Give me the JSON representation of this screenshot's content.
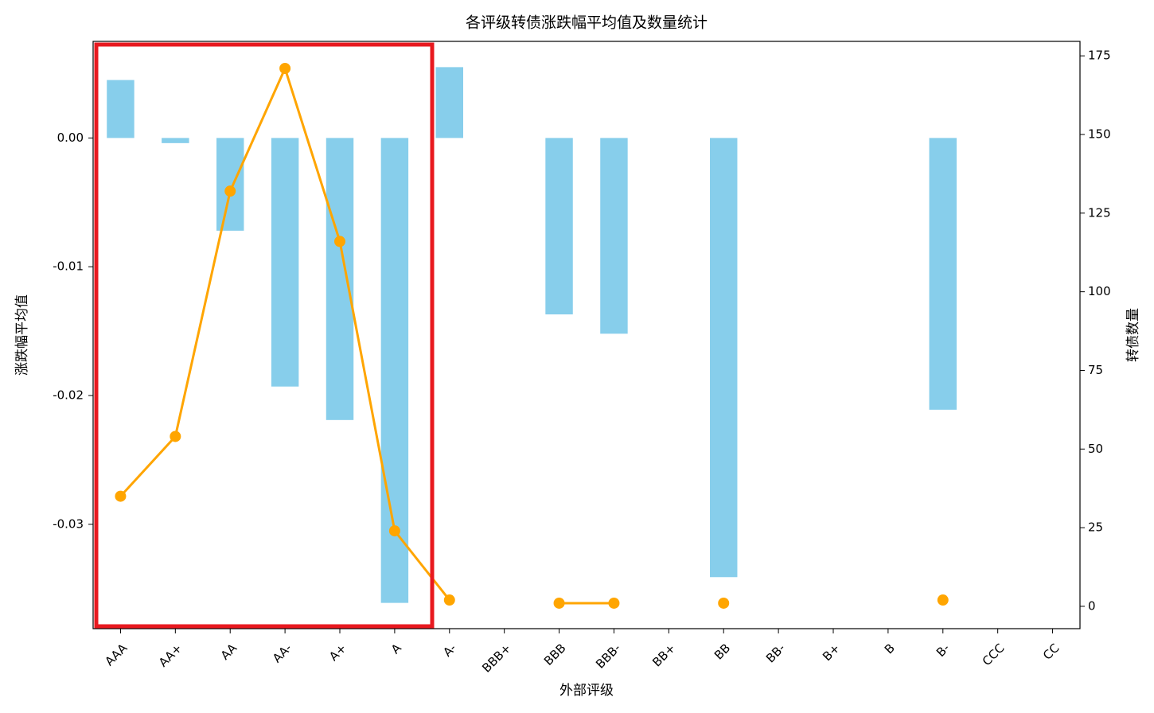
{
  "chart_data": {
    "type": "bar-line",
    "title": "各评级转债涨跌幅平均值及数量统计",
    "x_label": "外部评级",
    "y_label": "涨跌幅平均值",
    "y2_label": "转债数量",
    "categories": [
      "AAA",
      "AA+",
      "AA",
      "AA-",
      "A+",
      "A",
      "A-",
      "BBB+",
      "BBB",
      "BBB-",
      "BB+",
      "BB",
      "BB-",
      "B+",
      "B",
      "B-",
      "CCC",
      "CC"
    ],
    "series": [
      {
        "type": "bar",
        "color": "#87ceeb",
        "values": [
          0.0045,
          -0.0004,
          -0.0072,
          -0.0193,
          -0.0219,
          -0.0361,
          0.0055,
          null,
          -0.0137,
          -0.0152,
          null,
          -0.0341,
          null,
          null,
          null,
          -0.0211,
          null,
          null
        ]
      },
      {
        "type": "line",
        "axis": "y2",
        "color": "#ffa500",
        "values": [
          35,
          54,
          132,
          171,
          116,
          24,
          2,
          null,
          1,
          1,
          null,
          1,
          null,
          null,
          null,
          2,
          null,
          null
        ]
      }
    ],
    "ylim": [
      -0.0381,
      0.0075
    ],
    "yticks": [
      {
        "value": 0,
        "label": "0.00"
      },
      {
        "value": -0.01,
        "label": "-0.01"
      },
      {
        "value": -0.02,
        "label": "-0.02"
      },
      {
        "value": -0.03,
        "label": "-0.03"
      }
    ],
    "y2lim": [
      -7.1,
      179.6
    ],
    "y2ticks": [
      0,
      25,
      50,
      75,
      100,
      125,
      150,
      175
    ]
  }
}
